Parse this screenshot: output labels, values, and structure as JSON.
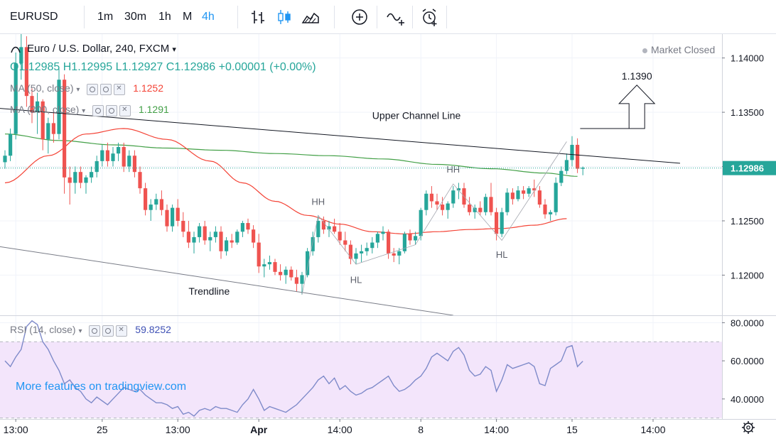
{
  "toolbar": {
    "symbol": "EURUSD",
    "intervals": [
      "1m",
      "30m",
      "1h",
      "M",
      "4h"
    ],
    "active_interval": "4h",
    "icons": [
      "bar-style-icon",
      "candle-style-icon",
      "area-style-icon",
      "add-compare-icon",
      "indicators-icon",
      "alert-icon"
    ]
  },
  "legend": {
    "title": "Euro / U.S. Dollar, 240, FXCM",
    "ohlc": {
      "o": "O1.12985",
      "h": "H1.12995",
      "l": "L1.12927",
      "c": "C1.12986",
      "chg": "+0.00001 (+0.00%)"
    },
    "ma50": {
      "label": "MA (50, close)",
      "value": "1.1252"
    },
    "ma200": {
      "label": "MA (200, close)",
      "value": "1.1291"
    },
    "rsi": {
      "label": "RSI (14, close)",
      "value": "59.8252"
    }
  },
  "status": "Market Closed",
  "watermark": "More features on tradingview.com",
  "colors": {
    "up": "#26a69a",
    "down": "#ef5350",
    "ma50": "#f44336",
    "ma200": "#43a047",
    "rsi": "#7e8ac9",
    "rsi_band": "#f3e5fb"
  },
  "chart_data": [
    {
      "type": "candlestick",
      "title": "Euro / U.S. Dollar, 240, FXCM",
      "ylim": [
        1.1163,
        1.1422
      ],
      "yticks": [
        "1.14000",
        "1.13500",
        "1.13000",
        "1.12500",
        "1.12000"
      ],
      "ytick_values": [
        1.14,
        1.135,
        1.13,
        1.125,
        1.12
      ],
      "xticks": [
        "13:00",
        "25",
        "13:00",
        "Apr",
        "14:00",
        "8",
        "14:00",
        "15",
        "14:00"
      ],
      "xtick_index": [
        2,
        18,
        32,
        47,
        62,
        77,
        91,
        105,
        120
      ],
      "last_price": "1.12986",
      "last_price_value": 1.12986,
      "candles": [
        [
          1.1304,
          1.1315,
          1.1298,
          1.131
        ],
        [
          1.131,
          1.1335,
          1.1305,
          1.133
        ],
        [
          1.133,
          1.1405,
          1.1325,
          1.1395
        ],
        [
          1.1395,
          1.1422,
          1.138,
          1.141
        ],
        [
          1.141,
          1.142,
          1.1355,
          1.1365
        ],
        [
          1.1365,
          1.1372,
          1.134,
          1.135
        ],
        [
          1.135,
          1.1368,
          1.133,
          1.136
        ],
        [
          1.136,
          1.1362,
          1.1315,
          1.1325
        ],
        [
          1.1325,
          1.1345,
          1.1312,
          1.134
        ],
        [
          1.134,
          1.135,
          1.1322,
          1.133
        ],
        [
          1.133,
          1.139,
          1.1325,
          1.138
        ],
        [
          1.138,
          1.1385,
          1.1275,
          1.129
        ],
        [
          1.129,
          1.13,
          1.1265,
          1.1285
        ],
        [
          1.1285,
          1.13,
          1.1275,
          1.1295
        ],
        [
          1.1295,
          1.13,
          1.128,
          1.1285
        ],
        [
          1.1285,
          1.1292,
          1.1275,
          1.129
        ],
        [
          1.129,
          1.13,
          1.1285,
          1.1295
        ],
        [
          1.1295,
          1.131,
          1.129,
          1.1305
        ],
        [
          1.1305,
          1.132,
          1.13,
          1.1315
        ],
        [
          1.1315,
          1.1322,
          1.13,
          1.1305
        ],
        [
          1.1305,
          1.1318,
          1.13,
          1.1312
        ],
        [
          1.1312,
          1.1322,
          1.1305,
          1.1318
        ],
        [
          1.1318,
          1.1322,
          1.1295,
          1.13
        ],
        [
          1.13,
          1.1315,
          1.1295,
          1.131
        ],
        [
          1.131,
          1.1315,
          1.129,
          1.1295
        ],
        [
          1.1295,
          1.13,
          1.1275,
          1.128
        ],
        [
          1.128,
          1.1285,
          1.1255,
          1.126
        ],
        [
          1.126,
          1.127,
          1.125,
          1.1265
        ],
        [
          1.1265,
          1.1275,
          1.126,
          1.127
        ],
        [
          1.127,
          1.1278,
          1.1255,
          1.126
        ],
        [
          1.126,
          1.1265,
          1.124,
          1.1245
        ],
        [
          1.1245,
          1.1265,
          1.124,
          1.1262
        ],
        [
          1.1262,
          1.127,
          1.1245,
          1.125
        ],
        [
          1.125,
          1.1258,
          1.1235,
          1.124
        ],
        [
          1.124,
          1.125,
          1.1225,
          1.123
        ],
        [
          1.123,
          1.124,
          1.122,
          1.1235
        ],
        [
          1.1235,
          1.1248,
          1.123,
          1.1245
        ],
        [
          1.1245,
          1.125,
          1.1228,
          1.1232
        ],
        [
          1.1232,
          1.124,
          1.1222,
          1.1235
        ],
        [
          1.1235,
          1.1245,
          1.123,
          1.124
        ],
        [
          1.124,
          1.1245,
          1.1215,
          1.1222
        ],
        [
          1.1222,
          1.1235,
          1.1218,
          1.1232
        ],
        [
          1.1232,
          1.1238,
          1.1225,
          1.123
        ],
        [
          1.123,
          1.1242,
          1.1228,
          1.124
        ],
        [
          1.124,
          1.125,
          1.1235,
          1.1248
        ],
        [
          1.1248,
          1.1252,
          1.1238,
          1.1242
        ],
        [
          1.1242,
          1.1246,
          1.1225,
          1.123
        ],
        [
          1.123,
          1.1238,
          1.1202,
          1.1208
        ],
        [
          1.1208,
          1.1215,
          1.1198,
          1.121
        ],
        [
          1.121,
          1.1218,
          1.1205,
          1.1212
        ],
        [
          1.1212,
          1.1215,
          1.12,
          1.1203
        ],
        [
          1.1203,
          1.121,
          1.1195,
          1.12
        ],
        [
          1.12,
          1.1208,
          1.1192,
          1.1205
        ],
        [
          1.1205,
          1.1208,
          1.1195,
          1.1198
        ],
        [
          1.1198,
          1.1205,
          1.1185,
          1.1192
        ],
        [
          1.1192,
          1.1203,
          1.1182,
          1.12
        ],
        [
          1.12,
          1.1225,
          1.1198,
          1.1222
        ],
        [
          1.1222,
          1.124,
          1.1218,
          1.1235
        ],
        [
          1.1235,
          1.1255,
          1.123,
          1.125
        ],
        [
          1.125,
          1.1254,
          1.1238,
          1.1242
        ],
        [
          1.1242,
          1.125,
          1.1235,
          1.1245
        ],
        [
          1.1245,
          1.1252,
          1.1238,
          1.124
        ],
        [
          1.124,
          1.1248,
          1.1228,
          1.1232
        ],
        [
          1.1232,
          1.124,
          1.1222,
          1.1228
        ],
        [
          1.1228,
          1.1232,
          1.121,
          1.1215
        ],
        [
          1.1215,
          1.1225,
          1.121,
          1.122
        ],
        [
          1.122,
          1.1228,
          1.1212,
          1.1222
        ],
        [
          1.1222,
          1.123,
          1.1218,
          1.1225
        ],
        [
          1.1225,
          1.1235,
          1.122,
          1.123
        ],
        [
          1.123,
          1.124,
          1.1225,
          1.1238
        ],
        [
          1.1238,
          1.1245,
          1.1232,
          1.124
        ],
        [
          1.124,
          1.1242,
          1.1215,
          1.122
        ],
        [
          1.122,
          1.1225,
          1.1212,
          1.1218
        ],
        [
          1.1218,
          1.1225,
          1.121,
          1.1222
        ],
        [
          1.1222,
          1.124,
          1.122,
          1.1238
        ],
        [
          1.1238,
          1.1242,
          1.1228,
          1.1232
        ],
        [
          1.1232,
          1.124,
          1.1228,
          1.1236
        ],
        [
          1.1236,
          1.1262,
          1.1232,
          1.126
        ],
        [
          1.126,
          1.1278,
          1.1255,
          1.1275
        ],
        [
          1.1275,
          1.1282,
          1.1262,
          1.1268
        ],
        [
          1.1268,
          1.1275,
          1.126,
          1.1265
        ],
        [
          1.1265,
          1.1272,
          1.1255,
          1.126
        ],
        [
          1.126,
          1.1268,
          1.1252,
          1.1266
        ],
        [
          1.1266,
          1.1282,
          1.1262,
          1.1278
        ],
        [
          1.1278,
          1.1285,
          1.127,
          1.128
        ],
        [
          1.128,
          1.1285,
          1.1262,
          1.1265
        ],
        [
          1.1265,
          1.1272,
          1.1255,
          1.1258
        ],
        [
          1.1258,
          1.1265,
          1.1252,
          1.1262
        ],
        [
          1.1262,
          1.1268,
          1.1255,
          1.1258
        ],
        [
          1.1258,
          1.1275,
          1.1255,
          1.1272
        ],
        [
          1.1272,
          1.1285,
          1.1255,
          1.1258
        ],
        [
          1.1258,
          1.1262,
          1.1232,
          1.1238
        ],
        [
          1.1238,
          1.1262,
          1.1235,
          1.1258
        ],
        [
          1.1258,
          1.128,
          1.1255,
          1.1276
        ],
        [
          1.1276,
          1.128,
          1.1265,
          1.127
        ],
        [
          1.127,
          1.1282,
          1.1268,
          1.1278
        ],
        [
          1.1278,
          1.1282,
          1.127,
          1.1275
        ],
        [
          1.1275,
          1.1282,
          1.1272,
          1.128
        ],
        [
          1.128,
          1.1288,
          1.1272,
          1.1278
        ],
        [
          1.1278,
          1.1282,
          1.1262,
          1.1265
        ],
        [
          1.1265,
          1.127,
          1.1252,
          1.1256
        ],
        [
          1.1256,
          1.126,
          1.125,
          1.1258
        ],
        [
          1.1258,
          1.129,
          1.1255,
          1.1285
        ],
        [
          1.1285,
          1.13,
          1.1282,
          1.1296
        ],
        [
          1.1296,
          1.1312,
          1.1293,
          1.1306
        ],
        [
          1.1306,
          1.1328,
          1.13,
          1.132
        ],
        [
          1.132,
          1.1326,
          1.1294,
          1.1298
        ],
        [
          1.1298,
          1.13,
          1.1292,
          1.1299
        ]
      ],
      "ma50": [
        [
          0,
          1.1285
        ],
        [
          8,
          1.131
        ],
        [
          15,
          1.133
        ],
        [
          22,
          1.1335
        ],
        [
          30,
          1.1325
        ],
        [
          38,
          1.1305
        ],
        [
          44,
          1.1285
        ],
        [
          50,
          1.1268
        ],
        [
          56,
          1.1255
        ],
        [
          62,
          1.1247
        ],
        [
          68,
          1.124
        ],
        [
          74,
          1.1238
        ],
        [
          80,
          1.124
        ],
        [
          86,
          1.1242
        ],
        [
          92,
          1.1243
        ],
        [
          98,
          1.1246
        ],
        [
          104,
          1.1252
        ]
      ],
      "ma200": [
        [
          0,
          1.133
        ],
        [
          10,
          1.1324
        ],
        [
          20,
          1.132
        ],
        [
          30,
          1.1317
        ],
        [
          40,
          1.1315
        ],
        [
          50,
          1.1312
        ],
        [
          60,
          1.131
        ],
        [
          70,
          1.1307
        ],
        [
          80,
          1.1302
        ],
        [
          90,
          1.1298
        ],
        [
          100,
          1.1294
        ],
        [
          106,
          1.1291
        ]
      ],
      "annotations": {
        "upper_channel_label": "Upper Channel Line",
        "trendline_label": "Trendline",
        "target_label": "1.1390",
        "swing_labels": [
          {
            "text": "HH",
            "index": 58,
            "price": 1.1262,
            "pos": "above"
          },
          {
            "text": "HL",
            "index": 65,
            "price": 1.1202,
            "pos": "below"
          },
          {
            "text": "HH",
            "index": 83,
            "price": 1.1292,
            "pos": "above"
          },
          {
            "text": "HL",
            "index": 92,
            "price": 1.1225,
            "pos": "below"
          }
        ],
        "upper_channel": [
          [
            -2,
            1.1354
          ],
          [
            125,
            1.1303
          ]
        ],
        "trendline": [
          [
            -2,
            1.1227
          ],
          [
            83,
            1.1163
          ]
        ],
        "zigzag": [
          [
            55,
            1.1182
          ],
          [
            58,
            1.1255
          ],
          [
            65,
            1.121
          ],
          [
            76,
            1.1228
          ],
          [
            83,
            1.1284
          ],
          [
            92,
            1.1232
          ],
          [
            104,
            1.1323
          ]
        ]
      }
    },
    {
      "type": "line",
      "title": "RSI (14, close)",
      "ylim": [
        29.5,
        83.5
      ],
      "yticks": [
        "80.0000",
        "60.0000",
        "40.0000"
      ],
      "ytick_values": [
        80,
        60,
        40
      ],
      "bands": [
        30,
        70
      ],
      "values": [
        60,
        57,
        62,
        66,
        78,
        81,
        79,
        70,
        66,
        60,
        55,
        48,
        50,
        46,
        44,
        40,
        38,
        41,
        39,
        37,
        40,
        43,
        46,
        45,
        44,
        45,
        42,
        40,
        38,
        38,
        37,
        35,
        36,
        32,
        33,
        31,
        34,
        35,
        34,
        36,
        35,
        35,
        34,
        33,
        37,
        40,
        45,
        40,
        34,
        36,
        35,
        34,
        33,
        35,
        37,
        40,
        43,
        46,
        50,
        52,
        48,
        51,
        45,
        47,
        44,
        42,
        43,
        45,
        46,
        48,
        50,
        52,
        47,
        44,
        45,
        47,
        50,
        52,
        56,
        62,
        64,
        62,
        60,
        65,
        67,
        63,
        55,
        52,
        53,
        57,
        55,
        44,
        50,
        58,
        56,
        57,
        58,
        59,
        57,
        48,
        47,
        56,
        58,
        60,
        67,
        68,
        57,
        59.8
      ]
    }
  ]
}
